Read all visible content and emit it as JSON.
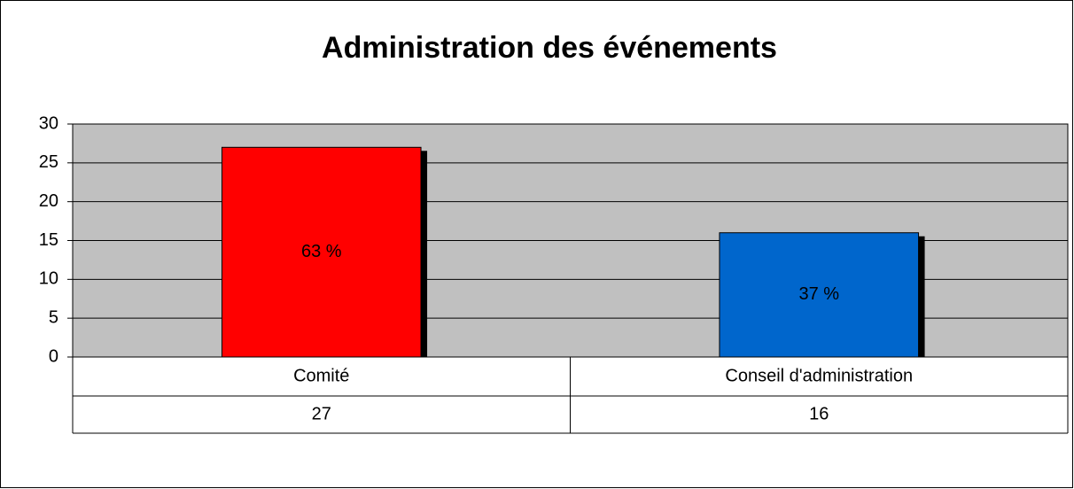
{
  "chart_data": {
    "type": "bar",
    "title": "Administration des événements",
    "categories": [
      "Comité",
      "Conseil d'administration"
    ],
    "values": [
      27,
      16
    ],
    "percent_labels": [
      "63 %",
      "37 %"
    ],
    "colors": [
      "#ff0000",
      "#0066cc"
    ],
    "ylim": [
      0,
      30
    ],
    "yticks": [
      0,
      5,
      10,
      15,
      20,
      25,
      30
    ],
    "grid": true
  }
}
